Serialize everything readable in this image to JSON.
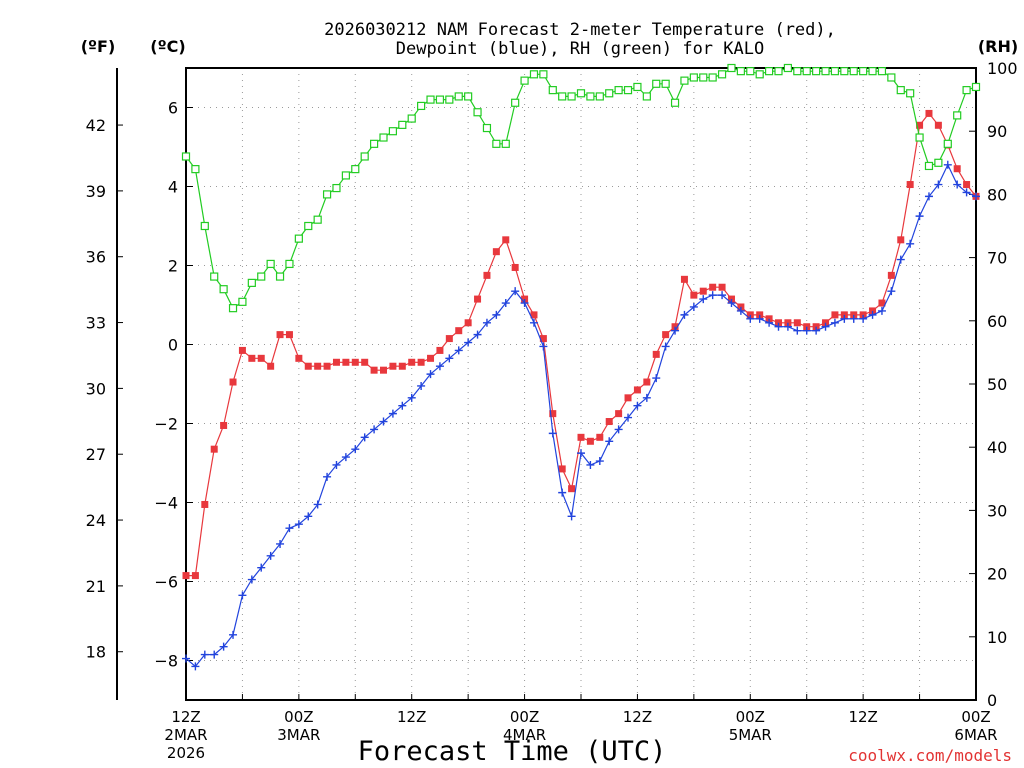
{
  "chart_data": {
    "type": "line",
    "title_line1": "2026030212 NAM Forecast 2-meter Temperature (red),",
    "title_line2": "Dewpoint (blue), RH (green) for KALO",
    "xlabel": "Forecast Time (UTC)",
    "credit": "coolwx.com/models",
    "units": {
      "fahrenheit": "(ºF)",
      "celsius": "(ºC)",
      "rh": "(RH)"
    },
    "x_range_hours": [
      0,
      84
    ],
    "y_celsius_range": [
      -9,
      7
    ],
    "y_rh_range": [
      0,
      100
    ],
    "celsius_ticks": [
      {
        "value": 6,
        "label": "6"
      },
      {
        "value": 4,
        "label": "4"
      },
      {
        "value": 2,
        "label": "2"
      },
      {
        "value": 0,
        "label": "0"
      },
      {
        "value": -2,
        "label": "−2"
      },
      {
        "value": -4,
        "label": "−4"
      },
      {
        "value": -6,
        "label": "−6"
      },
      {
        "value": -8,
        "label": "−8"
      }
    ],
    "fahrenheit_ticks": [
      "42",
      "39",
      "36",
      "33",
      "30",
      "27",
      "24",
      "21",
      "18"
    ],
    "fahrenheit_values": [
      42,
      39,
      36,
      33,
      30,
      27,
      24,
      21,
      18
    ],
    "rh_ticks": [
      "100",
      "90",
      "80",
      "70",
      "60",
      "50",
      "40",
      "30",
      "20",
      "10",
      "0"
    ],
    "rh_values": [
      100,
      90,
      80,
      70,
      60,
      50,
      40,
      30,
      20,
      10,
      0
    ],
    "x_ticks": [
      {
        "hour": 0,
        "lines": [
          "12Z",
          "2MAR",
          "2026"
        ]
      },
      {
        "hour": 12,
        "lines": [
          "00Z",
          "3MAR"
        ]
      },
      {
        "hour": 24,
        "lines": [
          "12Z"
        ]
      },
      {
        "hour": 36,
        "lines": [
          "00Z",
          "4MAR"
        ]
      },
      {
        "hour": 48,
        "lines": [
          "12Z"
        ]
      },
      {
        "hour": 60,
        "lines": [
          "00Z",
          "5MAR"
        ]
      },
      {
        "hour": 72,
        "lines": [
          "12Z"
        ]
      },
      {
        "hour": 84,
        "lines": [
          "00Z",
          "6MAR"
        ]
      }
    ],
    "series": [
      {
        "name": "Temperature",
        "axis": "celsius",
        "color": "#e8383d",
        "marker": "filled-square",
        "x": [
          0,
          1,
          2,
          3,
          4,
          5,
          6,
          7,
          8,
          9,
          10,
          11,
          12,
          13,
          14,
          15,
          16,
          17,
          18,
          19,
          20,
          21,
          22,
          23,
          24,
          25,
          26,
          27,
          28,
          29,
          30,
          31,
          32,
          33,
          34,
          35,
          36,
          37,
          38,
          39,
          40,
          41,
          42,
          43,
          44,
          45,
          46,
          47,
          48,
          49,
          50,
          51,
          52,
          53,
          54,
          55,
          56,
          57,
          58,
          59,
          60,
          61,
          62,
          63,
          64,
          65,
          66,
          67,
          68,
          69,
          70,
          71,
          72,
          73,
          74,
          75,
          76,
          77,
          78,
          79,
          80,
          81,
          82,
          83,
          84
        ],
        "values": [
          -5.85,
          -5.85,
          -4.05,
          -2.65,
          -2.05,
          -0.95,
          -0.15,
          -0.35,
          -0.35,
          -0.55,
          0.25,
          0.25,
          -0.35,
          -0.55,
          -0.55,
          -0.55,
          -0.45,
          -0.45,
          -0.45,
          -0.45,
          -0.65,
          -0.65,
          -0.55,
          -0.55,
          -0.45,
          -0.45,
          -0.35,
          -0.15,
          0.15,
          0.35,
          0.55,
          1.15,
          1.75,
          2.35,
          2.65,
          1.95,
          1.15,
          0.75,
          0.15,
          -1.75,
          -3.15,
          -3.65,
          -2.35,
          -2.45,
          -2.35,
          -1.95,
          -1.75,
          -1.35,
          -1.15,
          -0.95,
          -0.25,
          0.25,
          0.45,
          1.65,
          1.25,
          1.35,
          1.45,
          1.45,
          1.15,
          0.95,
          0.75,
          0.75,
          0.65,
          0.55,
          0.55,
          0.55,
          0.45,
          0.45,
          0.55,
          0.75,
          0.75,
          0.75,
          0.75,
          0.85,
          1.05,
          1.75,
          2.65,
          4.05,
          5.55,
          5.85,
          5.55,
          5.05,
          4.45,
          4.05,
          3.75
        ]
      },
      {
        "name": "Dewpoint",
        "axis": "celsius",
        "color": "#2244dd",
        "marker": "plus",
        "x": [
          0,
          1,
          2,
          3,
          4,
          5,
          6,
          7,
          8,
          9,
          10,
          11,
          12,
          13,
          14,
          15,
          16,
          17,
          18,
          19,
          20,
          21,
          22,
          23,
          24,
          25,
          26,
          27,
          28,
          29,
          30,
          31,
          32,
          33,
          34,
          35,
          36,
          37,
          38,
          39,
          40,
          41,
          42,
          43,
          44,
          45,
          46,
          47,
          48,
          49,
          50,
          51,
          52,
          53,
          54,
          55,
          56,
          57,
          58,
          59,
          60,
          61,
          62,
          63,
          64,
          65,
          66,
          67,
          68,
          69,
          70,
          71,
          72,
          73,
          74,
          75,
          76,
          77,
          78,
          79,
          80,
          81,
          82,
          83,
          84
        ],
        "values": [
          -7.95,
          -8.15,
          -7.85,
          -7.85,
          -7.65,
          -7.35,
          -6.35,
          -5.95,
          -5.65,
          -5.35,
          -5.05,
          -4.65,
          -4.55,
          -4.35,
          -4.05,
          -3.35,
          -3.05,
          -2.85,
          -2.65,
          -2.35,
          -2.15,
          -1.95,
          -1.75,
          -1.55,
          -1.35,
          -1.05,
          -0.75,
          -0.55,
          -0.35,
          -0.15,
          0.05,
          0.25,
          0.55,
          0.75,
          1.05,
          1.35,
          1.05,
          0.55,
          -0.05,
          -2.25,
          -3.75,
          -4.35,
          -2.75,
          -3.05,
          -2.95,
          -2.45,
          -2.15,
          -1.85,
          -1.55,
          -1.35,
          -0.85,
          -0.05,
          0.35,
          0.75,
          0.95,
          1.15,
          1.25,
          1.25,
          1.05,
          0.85,
          0.65,
          0.65,
          0.55,
          0.45,
          0.45,
          0.35,
          0.35,
          0.35,
          0.45,
          0.55,
          0.65,
          0.65,
          0.65,
          0.75,
          0.85,
          1.35,
          2.15,
          2.55,
          3.25,
          3.75,
          4.05,
          4.55,
          4.05,
          3.85,
          3.75
        ]
      },
      {
        "name": "RH",
        "axis": "rh",
        "color": "#22cc22",
        "marker": "open-square",
        "x": [
          0,
          1,
          2,
          3,
          4,
          5,
          6,
          7,
          8,
          9,
          10,
          11,
          12,
          13,
          14,
          15,
          16,
          17,
          18,
          19,
          20,
          21,
          22,
          23,
          24,
          25,
          26,
          27,
          28,
          29,
          30,
          31,
          32,
          33,
          34,
          35,
          36,
          37,
          38,
          39,
          40,
          41,
          42,
          43,
          44,
          45,
          46,
          47,
          48,
          49,
          50,
          51,
          52,
          53,
          54,
          55,
          56,
          57,
          58,
          59,
          60,
          61,
          62,
          63,
          64,
          65,
          66,
          67,
          68,
          69,
          70,
          71,
          72,
          73,
          74,
          75,
          76,
          77,
          78,
          79,
          80,
          81,
          82,
          83,
          84
        ],
        "values": [
          86,
          84,
          75,
          67,
          65,
          62,
          63,
          66,
          67,
          69,
          67,
          69,
          73,
          75,
          76,
          80,
          81,
          83,
          84,
          86,
          88,
          89,
          90,
          91,
          92,
          94,
          95,
          95,
          95,
          95.5,
          95.5,
          93,
          90.5,
          88,
          88,
          94.5,
          98,
          99,
          99,
          96.5,
          95.5,
          95.5,
          96,
          95.5,
          95.5,
          96,
          96.5,
          96.5,
          97,
          95.5,
          97.5,
          97.5,
          94.5,
          98,
          98.5,
          98.5,
          98.5,
          99,
          100,
          99.5,
          99.5,
          99,
          99.5,
          99.5,
          100,
          99.5,
          99.5,
          99.5,
          99.5,
          99.5,
          99.5,
          99.5,
          99.5,
          99.5,
          99.5,
          98.5,
          96.5,
          96,
          89,
          84.5,
          85,
          88,
          92.5,
          96.5,
          97
        ]
      }
    ]
  }
}
